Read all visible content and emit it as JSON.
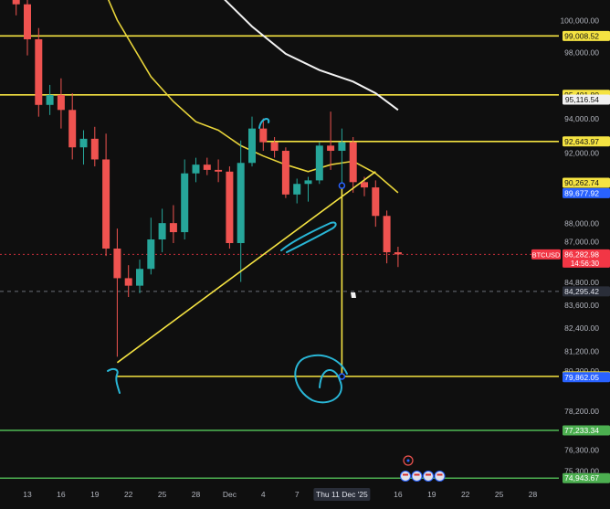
{
  "chart_data": {
    "type": "candlestick",
    "symbol": "BTCUSD",
    "countdown": "14:56:30",
    "colors": {
      "up": "#26a69a",
      "down": "#ef5350",
      "background": "#0f0f0f",
      "axis_text": "#b2b5be",
      "level_line": "#f5e342",
      "ma_fast": "#e8d43a",
      "ma_slow": "#f2f2f2",
      "support": "#4caf50",
      "drawing": "#29b6d6",
      "current_price_tag": "#f23645",
      "crosshair_tag": "#2962ff"
    },
    "y_axis": {
      "ylim": [
        74500,
        101800
      ],
      "scale": "log",
      "ticks": [
        {
          "label": "100,000.00",
          "value": 100000
        },
        {
          "label": "98,000.00",
          "value": 98000
        },
        {
          "label": "94,000.00",
          "value": 94000
        },
        {
          "label": "92,000.00",
          "value": 92000
        },
        {
          "label": "88,000.00",
          "value": 88000
        },
        {
          "label": "87,000.00",
          "value": 87000
        },
        {
          "label": "84,800.00",
          "value": 84800
        },
        {
          "label": "83,600.00",
          "value": 83600
        },
        {
          "label": "82,400.00",
          "value": 82400
        },
        {
          "label": "81,200.00",
          "value": 81200
        },
        {
          "label": "80,200.00",
          "value": 80200
        },
        {
          "label": "78,200.00",
          "value": 78200
        },
        {
          "label": "76,300.00",
          "value": 76300
        },
        {
          "label": "75,300.00",
          "value": 75300
        }
      ]
    },
    "x_axis": {
      "ticks": [
        {
          "label": "13",
          "day": 13
        },
        {
          "label": "16",
          "day": 16
        },
        {
          "label": "19",
          "day": 19
        },
        {
          "label": "22",
          "day": 22
        },
        {
          "label": "25",
          "day": 25
        },
        {
          "label": "28",
          "day": 28
        },
        {
          "label": "Dec",
          "day": 31
        },
        {
          "label": "4",
          "day": 34
        },
        {
          "label": "7",
          "day": 37
        },
        {
          "label": "13",
          "day": 43
        },
        {
          "label": "16",
          "day": 46
        },
        {
          "label": "19",
          "day": 49
        },
        {
          "label": "22",
          "day": 52
        },
        {
          "label": "25",
          "day": 55
        },
        {
          "label": "28",
          "day": 58
        }
      ],
      "highlight": {
        "label": "Thu 11 Dec '25",
        "day": 41
      }
    },
    "candles": [
      {
        "day": 11,
        "o": 104000,
        "h": 105000,
        "l": 101500,
        "c": 101800
      },
      {
        "day": 12,
        "o": 101800,
        "h": 102500,
        "l": 100300,
        "c": 101000
      },
      {
        "day": 13,
        "o": 101000,
        "h": 101500,
        "l": 97800,
        "c": 98800
      },
      {
        "day": 14,
        "o": 98800,
        "h": 99500,
        "l": 94100,
        "c": 94800
      },
      {
        "day": 15,
        "o": 94800,
        "h": 96000,
        "l": 94200,
        "c": 95400
      },
      {
        "day": 16,
        "o": 95400,
        "h": 96400,
        "l": 93400,
        "c": 94500
      },
      {
        "day": 17,
        "o": 94500,
        "h": 95500,
        "l": 91600,
        "c": 92300
      },
      {
        "day": 18,
        "o": 92300,
        "h": 93300,
        "l": 91300,
        "c": 92800
      },
      {
        "day": 19,
        "o": 92800,
        "h": 93500,
        "l": 91200,
        "c": 91600
      },
      {
        "day": 20,
        "o": 91600,
        "h": 93100,
        "l": 86200,
        "c": 86600
      },
      {
        "day": 21,
        "o": 86600,
        "h": 87700,
        "l": 80900,
        "c": 85000
      },
      {
        "day": 22,
        "o": 85000,
        "h": 85700,
        "l": 84000,
        "c": 84600
      },
      {
        "day": 23,
        "o": 84600,
        "h": 86000,
        "l": 84200,
        "c": 85500
      },
      {
        "day": 24,
        "o": 85500,
        "h": 88300,
        "l": 85200,
        "c": 87100
      },
      {
        "day": 25,
        "o": 87100,
        "h": 88800,
        "l": 86400,
        "c": 88000
      },
      {
        "day": 26,
        "o": 88000,
        "h": 89000,
        "l": 86900,
        "c": 87500
      },
      {
        "day": 27,
        "o": 87500,
        "h": 91600,
        "l": 87100,
        "c": 90800
      },
      {
        "day": 28,
        "o": 90800,
        "h": 91700,
        "l": 90300,
        "c": 91300
      },
      {
        "day": 29,
        "o": 91300,
        "h": 91700,
        "l": 90700,
        "c": 91000
      },
      {
        "day": 30,
        "o": 91000,
        "h": 91600,
        "l": 90300,
        "c": 90900
      },
      {
        "day": 31,
        "o": 90900,
        "h": 91200,
        "l": 86600,
        "c": 86900
      },
      {
        "day": 32,
        "o": 86900,
        "h": 92700,
        "l": 84800,
        "c": 91400
      },
      {
        "day": 33,
        "o": 91400,
        "h": 94100,
        "l": 91200,
        "c": 93400
      },
      {
        "day": 34,
        "o": 93400,
        "h": 94000,
        "l": 92100,
        "c": 92600
      },
      {
        "day": 35,
        "o": 92600,
        "h": 92900,
        "l": 91700,
        "c": 92100
      },
      {
        "day": 36,
        "o": 92100,
        "h": 92300,
        "l": 89400,
        "c": 89600
      },
      {
        "day": 37,
        "o": 89600,
        "h": 90500,
        "l": 89100,
        "c": 90200
      },
      {
        "day": 38,
        "o": 90200,
        "h": 90600,
        "l": 89200,
        "c": 90400
      },
      {
        "day": 39,
        "o": 90400,
        "h": 92600,
        "l": 90200,
        "c": 92400
      },
      {
        "day": 40,
        "o": 92400,
        "h": 94400,
        "l": 91000,
        "c": 92100
      },
      {
        "day": 41,
        "o": 92100,
        "h": 93400,
        "l": 90000,
        "c": 92600
      },
      {
        "day": 42,
        "o": 92600,
        "h": 92900,
        "l": 89700,
        "c": 90300
      },
      {
        "day": 43,
        "o": 90300,
        "h": 90600,
        "l": 89500,
        "c": 90000
      },
      {
        "day": 44,
        "o": 90000,
        "h": 90400,
        "l": 87800,
        "c": 88400
      },
      {
        "day": 45,
        "o": 88400,
        "h": 88700,
        "l": 85800,
        "c": 86400
      },
      {
        "day": 46,
        "o": 86400,
        "h": 86700,
        "l": 85600,
        "c": 86283
      }
    ],
    "price_levels": [
      {
        "label": "99,008.52",
        "value": 99008.52,
        "color": "#f5e342",
        "line": "full",
        "tag_bg": "#f5e342",
        "tag_fg": "#131313"
      },
      {
        "label": "95,401.80",
        "value": 95401.8,
        "color": "#f5e342",
        "line": "full",
        "tag_bg": "#f5e342",
        "tag_fg": "#131313"
      },
      {
        "label": "92,643.97",
        "value": 92643.97,
        "color": "#f5e342",
        "line": "from-day-34",
        "tag_bg": "#f5e342",
        "tag_fg": "#131313"
      },
      {
        "label": "79,903.59",
        "value": 79903.59,
        "color": "#f5e342",
        "line": "from-day-21",
        "tag_bg": "#f5e342",
        "tag_fg": "#131313"
      },
      {
        "label": "77,233.34",
        "value": 77233.34,
        "color": "#4caf50",
        "line": "full",
        "tag_bg": "#4caf50",
        "tag_fg": "#ffffff"
      },
      {
        "label": "74,943.67",
        "value": 74943.67,
        "color": "#4caf50",
        "line": "full",
        "tag_bg": "#4caf50",
        "tag_fg": "#ffffff"
      }
    ],
    "value_tags": [
      {
        "label": "95,116.54",
        "value": 95116.54,
        "bg": "#f0f0f0",
        "fg": "#131313"
      },
      {
        "label": "90,262.74",
        "value": 90262.74,
        "bg": "#f5e342",
        "fg": "#131313"
      },
      {
        "label": "89,677.92",
        "value": 89677.92,
        "bg": "#2962ff",
        "fg": "#ffffff"
      },
      {
        "label": "84,295.42",
        "value": 84295.42,
        "bg": "#2a2e39",
        "fg": "#e0e3eb"
      },
      {
        "label": "79,862.05",
        "value": 79862.05,
        "bg": "#2962ff",
        "fg": "#ffffff"
      }
    ],
    "current_price": {
      "label": "86,282.98",
      "value": 86282.98
    },
    "crosshair_y": {
      "value": 84295.42
    },
    "ma_fast": [
      {
        "day": 15,
        "v": 109000
      },
      {
        "day": 18,
        "v": 105000
      },
      {
        "day": 21,
        "v": 100000
      },
      {
        "day": 24,
        "v": 96500
      },
      {
        "day": 26,
        "v": 95000
      },
      {
        "day": 28,
        "v": 93800
      },
      {
        "day": 30,
        "v": 93300
      },
      {
        "day": 32,
        "v": 92400
      },
      {
        "day": 34,
        "v": 91800
      },
      {
        "day": 36,
        "v": 91300
      },
      {
        "day": 38,
        "v": 90900
      },
      {
        "day": 40,
        "v": 91300
      },
      {
        "day": 42,
        "v": 91500
      },
      {
        "day": 44,
        "v": 90800
      },
      {
        "day": 46,
        "v": 89700
      }
    ],
    "ma_slow": [
      {
        "day": 21,
        "v": 115000
      },
      {
        "day": 24,
        "v": 109500
      },
      {
        "day": 27,
        "v": 104600
      },
      {
        "day": 30,
        "v": 101700
      },
      {
        "day": 33,
        "v": 99600
      },
      {
        "day": 36,
        "v": 97900
      },
      {
        "day": 39,
        "v": 96900
      },
      {
        "day": 42,
        "v": 96200
      },
      {
        "day": 44,
        "v": 95500
      },
      {
        "day": 46,
        "v": 94500
      }
    ],
    "trendline": {
      "from": {
        "day": 21,
        "v": 80600
      },
      "to": {
        "day": 44,
        "v": 90900
      }
    },
    "measure_line": {
      "day": 41,
      "from": 90100,
      "to": 79900
    }
  }
}
